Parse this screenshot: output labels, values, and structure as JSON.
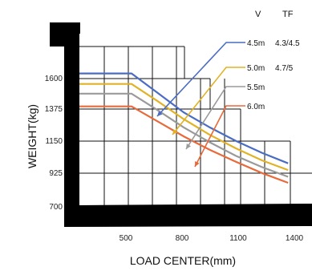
{
  "chart_data": {
    "type": "line",
    "title": "",
    "xlabel": "LOAD CENTER(mm)",
    "ylabel": "WEIGHT(kg)",
    "x_ticks": [
      "500",
      "800",
      "1100",
      "1400"
    ],
    "y_ticks": [
      "700",
      "925",
      "1150",
      "1375",
      "1600"
    ],
    "header": {
      "v": "V",
      "tf": "TF"
    },
    "xlim": [
      200,
      1450
    ],
    "ylim": [
      640,
      1700
    ],
    "series": [
      {
        "v": "4.5m",
        "tf": "4.3/4.5",
        "color": "#4a6cc2",
        "x": [
          200,
          500,
          650,
          800,
          950,
          1100,
          1250,
          1400
        ],
        "y": [
          1520,
          1520,
          1390,
          1260,
          1160,
          1070,
          990,
          920
        ]
      },
      {
        "v": "5.0m",
        "tf": "4.7/5",
        "color": "#e2b226",
        "x": [
          200,
          500,
          650,
          800,
          950,
          1100,
          1250,
          1400
        ],
        "y": [
          1450,
          1450,
          1335,
          1215,
          1110,
          1020,
          940,
          875
        ]
      },
      {
        "v": "5.5m",
        "tf": "",
        "color": "#9a9a9a",
        "x": [
          200,
          500,
          650,
          800,
          950,
          1100,
          1250,
          1400
        ],
        "y": [
          1385,
          1385,
          1275,
          1160,
          1060,
          970,
          895,
          830
        ]
      },
      {
        "v": "6.0m",
        "tf": "",
        "color": "#e8693a",
        "x": [
          200,
          500,
          650,
          800,
          950,
          1100,
          1250,
          1400
        ],
        "y": [
          1300,
          1300,
          1200,
          1100,
          1010,
          930,
          855,
          790
        ]
      }
    ]
  }
}
